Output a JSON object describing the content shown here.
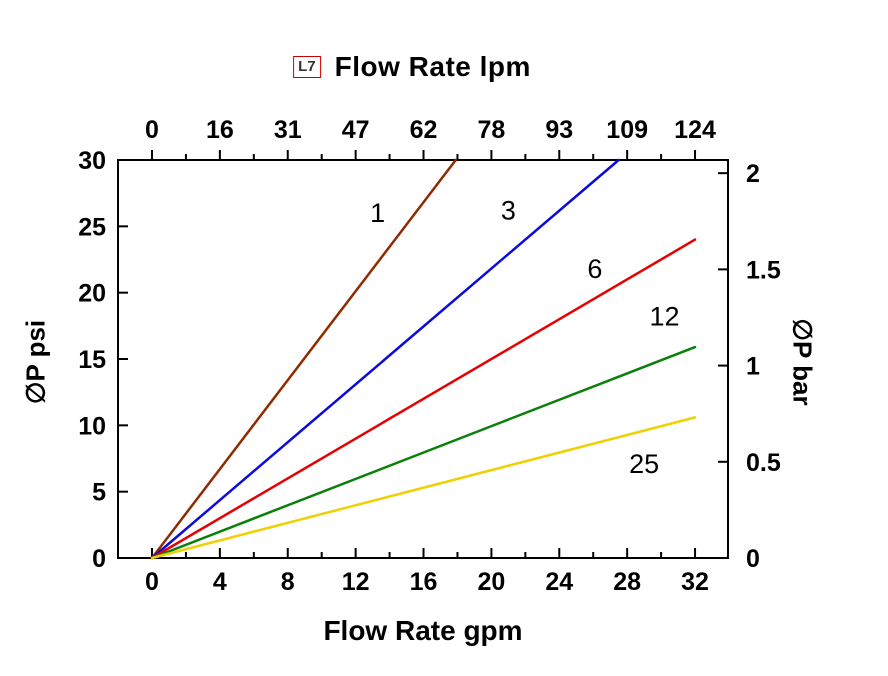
{
  "page": {
    "background": "#ffffff"
  },
  "chart_data": {
    "type": "line",
    "legend_box": "L7",
    "title_top": "Flow Rate lpm",
    "xlabel_bottom": "Flow Rate gpm",
    "ylabel_left": "∅P psi",
    "ylabel_right": "∅P bar",
    "x_tick_values_gpm": [
      0,
      4,
      8,
      12,
      16,
      20,
      24,
      28,
      32
    ],
    "x_tick_labels_gpm": [
      "0",
      "4",
      "8",
      "12",
      "16",
      "20",
      "24",
      "28",
      "32"
    ],
    "x_tick_labels_lpm": [
      "0",
      "16",
      "31",
      "47",
      "62",
      "78",
      "93",
      "109",
      "124"
    ],
    "y_tick_values_psi": [
      0,
      5,
      10,
      15,
      20,
      25,
      30
    ],
    "y_tick_labels_psi": [
      "0",
      "5",
      "10",
      "15",
      "20",
      "25",
      "30"
    ],
    "y_tick_values_bar": [
      0,
      0.5,
      1,
      1.5,
      2
    ],
    "y_tick_labels_bar": [
      "0",
      "0.5",
      "1",
      "1.5",
      "2"
    ],
    "xlim_gpm": [
      0,
      32
    ],
    "ylim_psi": [
      0,
      30
    ],
    "bar_per_psi": 0.0689476,
    "series": [
      {
        "name": "1",
        "color": "#8F2B00",
        "points": [
          [
            0,
            0
          ],
          [
            17.9,
            30
          ]
        ],
        "label_pos": [
          13.3,
          26.0
        ]
      },
      {
        "name": "3",
        "color": "#0B0BDC",
        "points": [
          [
            0,
            0
          ],
          [
            27.5,
            30
          ]
        ],
        "label_pos": [
          21.0,
          26.2
        ]
      },
      {
        "name": "6",
        "color": "#E80000",
        "points": [
          [
            0,
            0
          ],
          [
            32,
            24.0
          ]
        ],
        "label_pos": [
          26.1,
          21.8
        ]
      },
      {
        "name": "12",
        "color": "#0A800A",
        "points": [
          [
            0,
            0
          ],
          [
            32,
            15.9
          ]
        ],
        "label_pos": [
          30.2,
          18.2
        ]
      },
      {
        "name": "25",
        "color": "#EFD002",
        "points": [
          [
            0,
            0
          ],
          [
            32,
            10.6
          ]
        ],
        "label_pos": [
          29.0,
          7.1
        ]
      }
    ]
  }
}
